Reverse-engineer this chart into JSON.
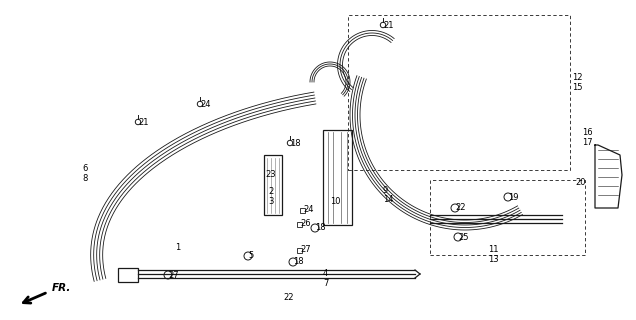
{
  "bg_color": "#ffffff",
  "line_color": "#1a1a1a",
  "parts": [
    [
      "1",
      175,
      247
    ],
    [
      "2",
      268,
      191
    ],
    [
      "3",
      268,
      201
    ],
    [
      "4",
      323,
      273
    ],
    [
      "5",
      248,
      256
    ],
    [
      "6",
      82,
      168
    ],
    [
      "7",
      323,
      283
    ],
    [
      "8",
      82,
      178
    ],
    [
      "9",
      383,
      190
    ],
    [
      "10",
      330,
      202
    ],
    [
      "11",
      488,
      250
    ],
    [
      "12",
      572,
      77
    ],
    [
      "13",
      488,
      260
    ],
    [
      "14",
      383,
      200
    ],
    [
      "15",
      572,
      87
    ],
    [
      "16",
      582,
      132
    ],
    [
      "17",
      582,
      142
    ],
    [
      "18",
      290,
      143
    ],
    [
      "18",
      315,
      228
    ],
    [
      "18",
      293,
      262
    ],
    [
      "19",
      508,
      197
    ],
    [
      "20",
      575,
      182
    ],
    [
      "21",
      138,
      122
    ],
    [
      "21",
      383,
      25
    ],
    [
      "22",
      283,
      298
    ],
    [
      "22",
      455,
      208
    ],
    [
      "23",
      265,
      174
    ],
    [
      "24",
      200,
      104
    ],
    [
      "24",
      303,
      210
    ],
    [
      "25",
      458,
      237
    ],
    [
      "26",
      300,
      224
    ],
    [
      "27",
      168,
      275
    ],
    [
      "27",
      300,
      250
    ]
  ]
}
